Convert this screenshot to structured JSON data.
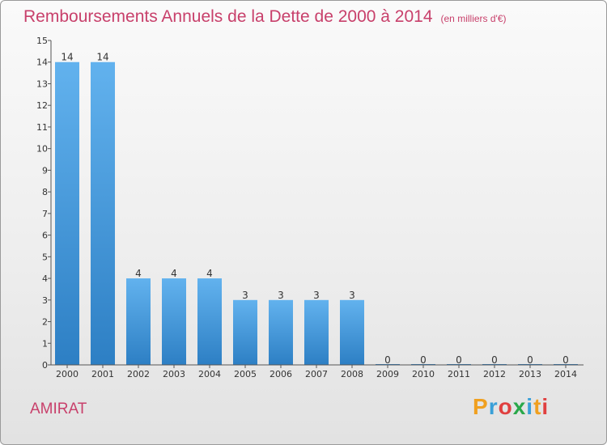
{
  "title": "Remboursements Annuels de la Dette de 2000 à 2014",
  "unit_note": "(en milliers d'€)",
  "commune": "AMIRAT",
  "logo": {
    "letters": [
      "P",
      "r",
      "o",
      "x",
      "i",
      "t",
      "i"
    ],
    "colors": [
      "#f0a020",
      "#3aa0d8",
      "#e04040",
      "#2aa84a",
      "#3aa0d8",
      "#f0a020",
      "#e04040"
    ]
  },
  "chart_data": {
    "type": "bar",
    "categories": [
      "2000",
      "2001",
      "2002",
      "2003",
      "2004",
      "2005",
      "2006",
      "2007",
      "2008",
      "2009",
      "2010",
      "2011",
      "2012",
      "2013",
      "2014"
    ],
    "values": [
      14,
      14,
      4,
      4,
      4,
      3,
      3,
      3,
      3,
      0,
      0,
      0,
      0,
      0,
      0
    ],
    "ylim": [
      0,
      15
    ],
    "yticks": [
      0,
      1,
      2,
      3,
      4,
      5,
      6,
      7,
      8,
      9,
      10,
      11,
      12,
      13,
      14,
      15
    ],
    "bar_color": "#4a9fe0",
    "grid": false
  }
}
